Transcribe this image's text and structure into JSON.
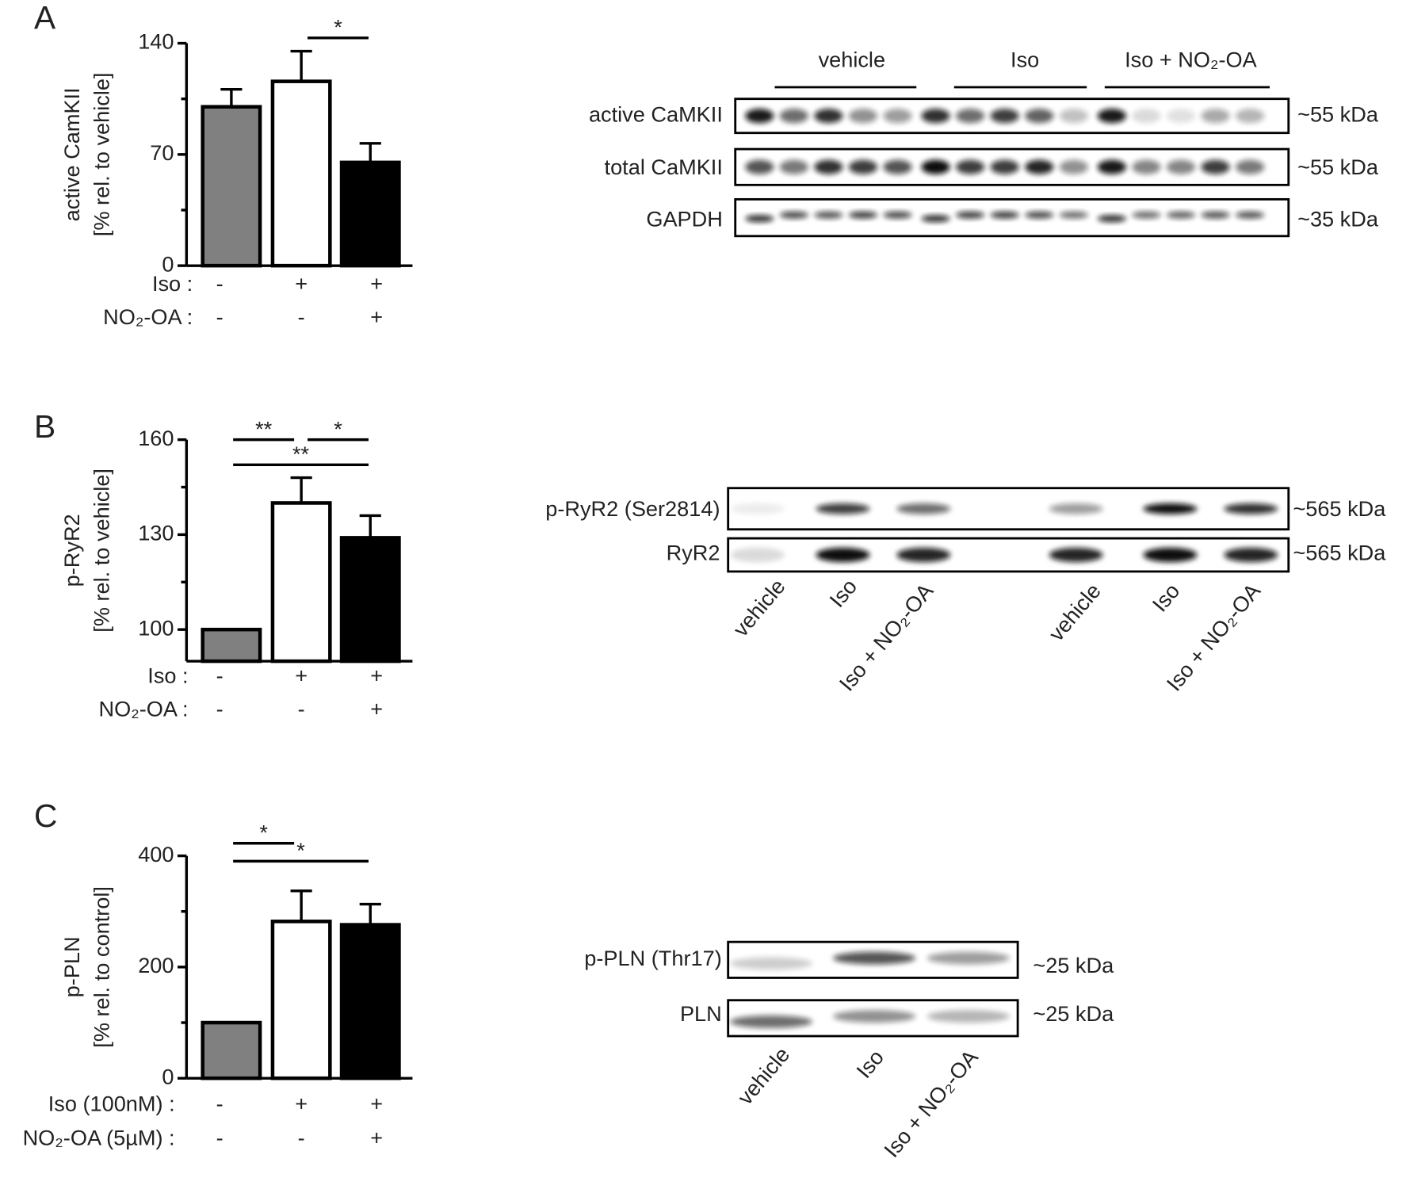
{
  "chart_data": [
    {
      "type": "bar",
      "panel": "A",
      "ylabel": [
        "active CamKII",
        "[% rel. to vehicle]"
      ],
      "colors": [
        "#808080",
        "#ffffff",
        "#000000"
      ],
      "values": [
        100,
        116,
        65
      ],
      "errors": [
        11,
        19,
        12
      ],
      "ylim": [
        0,
        140
      ],
      "yticks": [
        0,
        70,
        140
      ],
      "conditions": [
        {
          "label": "Iso :",
          "signs": [
            "-",
            "+",
            "+"
          ]
        },
        {
          "label": "NO₂-OA :",
          "signs": [
            "-",
            "-",
            "+"
          ]
        }
      ],
      "significance": [
        {
          "label": "*",
          "bars": [
            1,
            2
          ]
        }
      ]
    },
    {
      "type": "bar",
      "panel": "B",
      "ylabel": [
        "p-RyR2",
        "[% rel. to vehicle]"
      ],
      "colors": [
        "#808080",
        "#ffffff",
        "#000000"
      ],
      "values": [
        100,
        140,
        129
      ],
      "errors": [
        0,
        8,
        7
      ],
      "ylim": [
        90,
        160
      ],
      "yticks": [
        100,
        130,
        160
      ],
      "conditions": [
        {
          "label": "Iso :",
          "signs": [
            "-",
            "+",
            "+"
          ]
        },
        {
          "label": "NO₂-OA :",
          "signs": [
            "-",
            "-",
            "+"
          ]
        }
      ],
      "significance": [
        {
          "label": "**",
          "bars": [
            0,
            1
          ]
        },
        {
          "label": "*",
          "bars": [
            1,
            2
          ]
        },
        {
          "label": "**",
          "bars": [
            0,
            2
          ]
        }
      ]
    },
    {
      "type": "bar",
      "panel": "C",
      "ylabel": [
        "p-PLN",
        "[% rel. to control]"
      ],
      "colors": [
        "#808080",
        "#ffffff",
        "#000000"
      ],
      "values": [
        100,
        282,
        276
      ],
      "errors": [
        0,
        55,
        37
      ],
      "ylim": [
        0,
        400
      ],
      "yticks": [
        0,
        200,
        400
      ],
      "conditions": [
        {
          "label": "Iso (100nM) :",
          "signs": [
            "-",
            "+",
            "+"
          ]
        },
        {
          "label": "NO₂-OA (5µM) :",
          "signs": [
            "-",
            "-",
            "+"
          ]
        }
      ],
      "significance": [
        {
          "label": "*",
          "bars": [
            0,
            1
          ]
        },
        {
          "label": "*",
          "bars": [
            0,
            2
          ]
        }
      ]
    }
  ],
  "blots": [
    {
      "groups": [
        "vehicle",
        "Iso",
        "Iso + NO₂-OA"
      ],
      "rows": [
        {
          "label": "active CaMKII",
          "kda": "~55 kDa"
        },
        {
          "label": "total CaMKII",
          "kda": "~55 kDa"
        },
        {
          "label": "GAPDH",
          "kda": "~35 kDa"
        }
      ]
    },
    {
      "lanes": [
        "vehicle",
        "Iso",
        "Iso + NO₂-OA",
        "vehicle",
        "Iso",
        "Iso + NO₂-OA"
      ],
      "rows": [
        {
          "label": "p-RyR2 (Ser2814)",
          "kda": "~565 kDa"
        },
        {
          "label": "RyR2",
          "kda": "~565 kDa"
        }
      ]
    },
    {
      "lanes": [
        "vehicle",
        "Iso",
        "Iso + NO₂-OA"
      ],
      "rows": [
        {
          "label": "p-PLN (Thr17)",
          "kda": "~25 kDa"
        },
        {
          "label": "PLN",
          "kda": "~25 kDa"
        }
      ]
    }
  ]
}
